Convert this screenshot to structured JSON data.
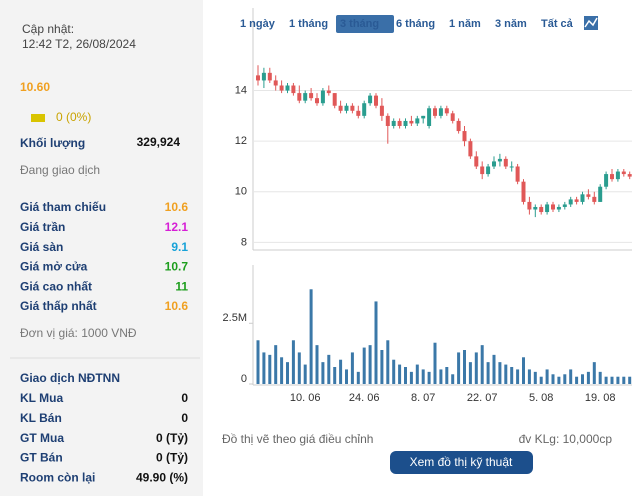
{
  "info": {
    "updated_label": "Cập nhật:",
    "updated_time": "12:42 T2, 26/08/2024",
    "price": "10.60",
    "price_color": "#f0a020",
    "change": "0 (0%)",
    "volume_label": "Khối lượng",
    "volume": "329,924",
    "status": "Đang giao dịch",
    "prices": [
      {
        "label": "Giá tham chiếu",
        "value": "10.6",
        "color": "#f0a020"
      },
      {
        "label": "Giá trần",
        "value": "12.1",
        "color": "#d61ed6"
      },
      {
        "label": "Giá sàn",
        "value": "9.1",
        "color": "#17a2d8"
      },
      {
        "label": "Giá mở cửa",
        "value": "10.7",
        "color": "#1d9e1d"
      },
      {
        "label": "Giá cao nhất",
        "value": "11",
        "color": "#1d9e1d"
      },
      {
        "label": "Giá thấp nhất",
        "value": "10.6",
        "color": "#f0a020"
      }
    ],
    "unit_note": "Đơn vị giá: 1000 VNĐ",
    "foreign": {
      "title": "Giao dịch NĐTNN",
      "rows": [
        {
          "label": "KL Mua",
          "value": "0"
        },
        {
          "label": "KL Bán",
          "value": "0"
        },
        {
          "label": "GT Mua",
          "value": "0 (Tỷ)"
        },
        {
          "label": "GT Bán",
          "value": "0 (Tỷ)"
        },
        {
          "label": "Room còn lại",
          "value": "49.90 (%)"
        }
      ]
    }
  },
  "tabs": {
    "items": [
      "1 ngày",
      "1 tháng",
      "3 tháng",
      "6 tháng",
      "1 năm",
      "3 năm",
      "Tất cả"
    ],
    "active": 2
  },
  "chart_data": [
    {
      "type": "candlestick",
      "up_color": "#2a9d8f",
      "down_color": "#e05858",
      "ylim": [
        7.7,
        15.8
      ],
      "yticks": [
        8,
        10,
        12,
        14
      ],
      "grid": true,
      "open": [
        14.6,
        14.4,
        14.7,
        14.4,
        14.2,
        14.0,
        14.2,
        13.9,
        13.6,
        13.9,
        13.7,
        13.5,
        14.0,
        13.9,
        13.4,
        13.2,
        13.4,
        13.2,
        13.0,
        13.5,
        13.8,
        13.4,
        13.0,
        12.6,
        12.8,
        12.6,
        12.8,
        12.7,
        12.9,
        12.6,
        13.3,
        13.0,
        13.3,
        13.1,
        12.8,
        12.4,
        12.0,
        11.4,
        11.0,
        10.7,
        11.0,
        11.2,
        11.3,
        11.0,
        11.0,
        10.4,
        9.6,
        9.3,
        9.4,
        9.2,
        9.5,
        9.3,
        9.4,
        9.5,
        9.7,
        9.6,
        9.9,
        9.8,
        9.6,
        10.2,
        10.7,
        10.5,
        10.8,
        10.7
      ],
      "high": [
        15.0,
        14.9,
        14.9,
        14.6,
        14.4,
        14.3,
        14.3,
        14.2,
        14.0,
        14.1,
        13.9,
        14.1,
        14.2,
        13.9,
        13.6,
        13.5,
        13.5,
        13.4,
        13.6,
        13.9,
        13.9,
        13.7,
        13.1,
        12.9,
        12.9,
        12.9,
        13.0,
        13.0,
        13.0,
        13.4,
        13.4,
        13.4,
        13.4,
        13.2,
        12.9,
        12.6,
        12.1,
        11.6,
        11.2,
        11.1,
        11.4,
        11.5,
        11.4,
        11.2,
        11.1,
        10.5,
        9.8,
        9.5,
        9.5,
        9.6,
        9.6,
        9.5,
        9.6,
        9.8,
        9.8,
        10.0,
        10.1,
        10.0,
        10.3,
        10.8,
        10.9,
        10.9,
        10.9,
        10.8
      ],
      "low": [
        14.2,
        14.1,
        14.3,
        14.0,
        13.9,
        13.9,
        13.8,
        13.5,
        13.5,
        13.6,
        13.4,
        13.4,
        13.8,
        13.3,
        13.1,
        13.1,
        13.1,
        12.9,
        12.9,
        13.4,
        13.3,
        12.8,
        11.9,
        12.5,
        12.5,
        12.5,
        12.6,
        12.6,
        12.7,
        12.5,
        12.9,
        12.9,
        13.0,
        12.7,
        12.3,
        11.8,
        11.3,
        10.9,
        10.5,
        10.6,
        10.9,
        11.0,
        10.9,
        10.8,
        10.3,
        9.5,
        9.1,
        9.0,
        9.1,
        9.1,
        9.2,
        9.2,
        9.3,
        9.4,
        9.5,
        9.5,
        9.7,
        9.5,
        9.6,
        10.1,
        10.4,
        10.4,
        10.6,
        10.5
      ],
      "close": [
        14.4,
        14.7,
        14.4,
        14.2,
        14.0,
        14.2,
        13.9,
        13.6,
        13.9,
        13.7,
        13.5,
        14.0,
        13.9,
        13.4,
        13.2,
        13.4,
        13.2,
        13.0,
        13.5,
        13.8,
        13.4,
        13.0,
        12.6,
        12.8,
        12.6,
        12.8,
        12.7,
        12.9,
        13.0,
        13.3,
        13.0,
        13.3,
        13.1,
        12.8,
        12.4,
        12.0,
        11.4,
        11.0,
        10.7,
        11.0,
        11.2,
        11.3,
        11.0,
        11.0,
        10.4,
        9.6,
        9.3,
        9.4,
        9.2,
        9.5,
        9.3,
        9.4,
        9.5,
        9.7,
        9.6,
        9.9,
        9.8,
        9.6,
        10.2,
        10.7,
        10.5,
        10.8,
        10.7,
        10.6
      ]
    },
    {
      "type": "bar",
      "color": "#3b78a8",
      "ylim": [
        0,
        4900000
      ],
      "yticks": [
        0,
        {
          "value": 2500000,
          "label": "2.5M"
        }
      ],
      "categories": [
        null,
        null,
        null,
        null,
        null,
        null,
        null,
        null,
        "10. 06",
        null,
        null,
        null,
        null,
        null,
        null,
        null,
        null,
        null,
        "24. 06",
        null,
        null,
        null,
        null,
        null,
        null,
        null,
        null,
        null,
        "8. 07",
        null,
        null,
        null,
        null,
        null,
        null,
        null,
        null,
        null,
        "22. 07",
        null,
        null,
        null,
        null,
        null,
        null,
        null,
        null,
        null,
        "5. 08",
        null,
        null,
        null,
        null,
        null,
        null,
        null,
        null,
        null,
        "19. 08",
        null,
        null,
        null,
        null,
        null
      ],
      "values": [
        1800000,
        1300000,
        1200000,
        1600000,
        1100000,
        900000,
        1800000,
        1300000,
        800000,
        3900000,
        1600000,
        900000,
        1200000,
        700000,
        1000000,
        600000,
        1300000,
        500000,
        1500000,
        1600000,
        3400000,
        1400000,
        1800000,
        1000000,
        800000,
        700000,
        500000,
        800000,
        600000,
        500000,
        1700000,
        600000,
        700000,
        400000,
        1300000,
        1400000,
        900000,
        1300000,
        1600000,
        900000,
        1200000,
        900000,
        800000,
        700000,
        600000,
        1100000,
        600000,
        500000,
        300000,
        600000,
        400000,
        300000,
        400000,
        600000,
        300000,
        400000,
        500000,
        900000,
        500000,
        300000,
        300000,
        300000,
        300000,
        300000
      ]
    }
  ],
  "footer": {
    "note": "Đồ thị vẽ theo giá điều chỉnh",
    "unit": "đv KLg: 10,000cp",
    "button": "Xem đồ thị kỹ thuật"
  }
}
